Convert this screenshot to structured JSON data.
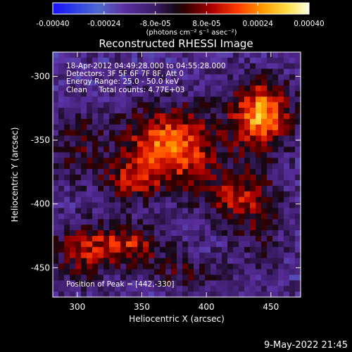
{
  "chart_data": {
    "type": "heatmap",
    "title": "Reconstructed RHESSI Image",
    "xlabel": "Heliocentric X (arcsec)",
    "ylabel": "Heliocentric Y (arcsec)",
    "xlim": [
      281,
      473
    ],
    "ylim": [
      -473,
      -281
    ],
    "x_ticks": [
      300,
      350,
      400,
      450
    ],
    "y_ticks": [
      -300,
      -350,
      -400,
      -450
    ],
    "colorbar": {
      "range": [
        -0.0004,
        0.0004
      ],
      "ticks": [
        -0.0004,
        -0.00024,
        -8e-05,
        8e-05,
        0.00024,
        0.0004
      ],
      "tick_labels": [
        "-0.00040",
        "-0.00024",
        "-8.0e-05",
        "8.0e-05",
        "0.00024",
        "0.00040"
      ],
      "units": "(photons cm⁻² s⁻¹ asec⁻²)"
    },
    "annotations": [
      "18-Apr-2012 04:49:28.000 to 04:55:28.000",
      "Detectors: 3F 5F 6F 7F 8F, Att 0",
      "Energy Range: 25.0 - 50.0 keV",
      "Clean     Total counts: 4.77E+03"
    ],
    "peak_label": "Position of Peak = [442,-330]",
    "peak_position": [
      442,
      -330
    ],
    "image_blobs": [
      {
        "x": 372,
        "y": -356,
        "sx": 26,
        "sy": 22,
        "amp": 0.00036
      },
      {
        "x": 340,
        "y": -382,
        "sx": 14,
        "sy": 10,
        "amp": 0.00018
      },
      {
        "x": 442,
        "y": -330,
        "sx": 16,
        "sy": 18,
        "amp": 0.0004
      },
      {
        "x": 335,
        "y": -432,
        "sx": 22,
        "sy": 12,
        "amp": 0.00026
      },
      {
        "x": 300,
        "y": -440,
        "sx": 14,
        "sy": 16,
        "amp": 0.00016
      },
      {
        "x": 420,
        "y": -395,
        "sx": 16,
        "sy": 14,
        "amp": 0.00018
      },
      {
        "x": 440,
        "y": -410,
        "sx": 14,
        "sy": 28,
        "amp": 0.00012
      },
      {
        "x": 300,
        "y": -355,
        "sx": 16,
        "sy": 20,
        "amp": 0.00012
      },
      {
        "x": 385,
        "y": -455,
        "sx": 20,
        "sy": 10,
        "amp": 0.00012
      }
    ],
    "colors": {
      "background": "#000000",
      "text": "#ffffff"
    }
  },
  "footer": {
    "date": "9-May-2022 21:45"
  }
}
